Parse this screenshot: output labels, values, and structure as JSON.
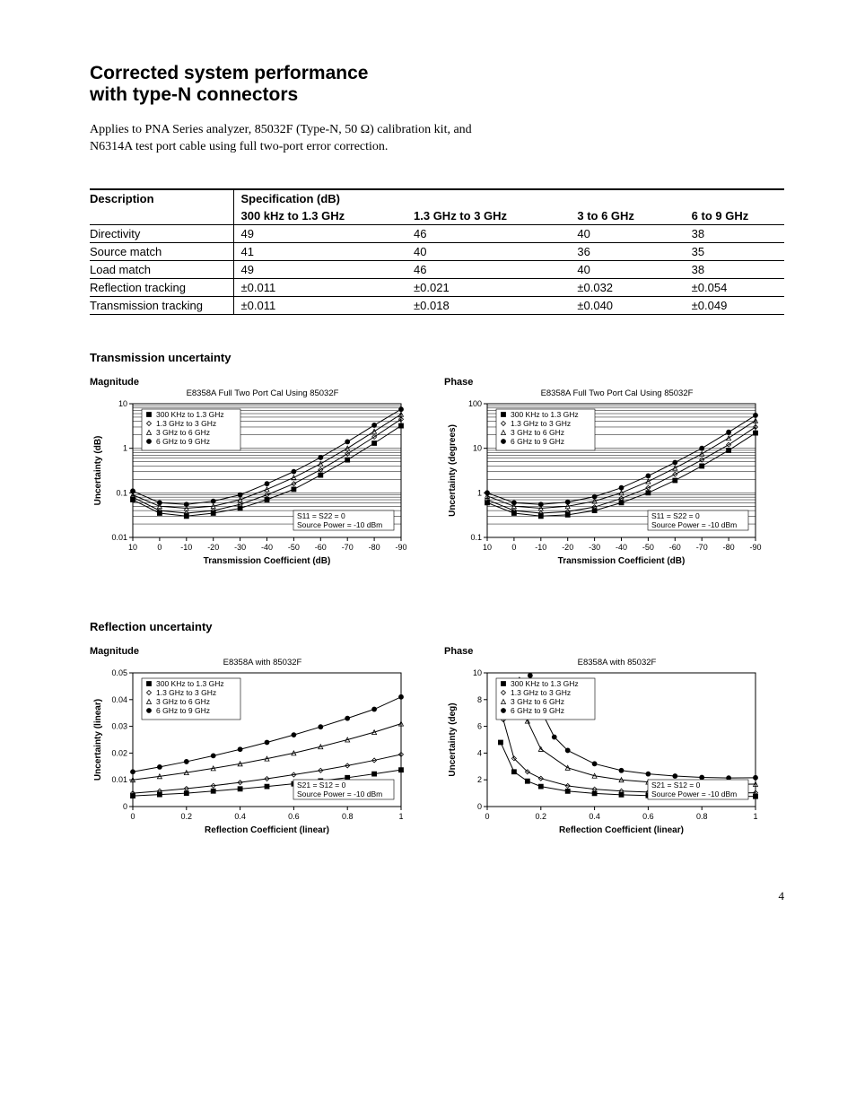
{
  "page_number": "4",
  "heading_line1": "Corrected system performance",
  "heading_line2": "with type-N connectors",
  "intro": "Applies to PNA Series analyzer, 85032F (Type-N, 50 Ω) calibration kit, and N6314A test port cable using full two-port error correction.",
  "table": {
    "headers": {
      "desc": "Description",
      "spec": "Specification (dB)"
    },
    "cols": [
      "300 kHz to 1.3 GHz",
      "1.3 GHz to 3 GHz",
      "3 to 6 GHz",
      "6 to 9 GHz"
    ],
    "rows": [
      {
        "label": "Directivity",
        "v": [
          "49",
          "46",
          "40",
          "38"
        ]
      },
      {
        "label": "Source match",
        "v": [
          "41",
          "40",
          "36",
          "35"
        ]
      },
      {
        "label": "Load match",
        "v": [
          "49",
          "46",
          "40",
          "38"
        ]
      },
      {
        "label": "Reflection tracking",
        "v": [
          "±0.011",
          "±0.021",
          "±0.032",
          "±0.054"
        ]
      },
      {
        "label": "Transmission tracking",
        "v": [
          "±0.011",
          "±0.018",
          "±0.040",
          "±0.049"
        ]
      }
    ]
  },
  "legend_items": [
    "300 KHz to 1.3 GHz",
    "1.3 GHz to 3 GHz",
    "3 GHz to 6 GHz",
    "6 GHz to 9 GHz"
  ],
  "legend_markers": [
    "square",
    "diamond",
    "triangle",
    "circle"
  ],
  "sections": {
    "trans": {
      "title": "Transmission uncertainty",
      "annot": [
        "S11 = S22 = 0",
        "Source Power = -10 dBm"
      ],
      "xlabel": "Transmission Coefficient (dB)",
      "xticks": [
        10,
        0,
        -10,
        -20,
        -30,
        -40,
        -50,
        -60,
        -70,
        -80,
        -90
      ],
      "mag": {
        "sub": "Magnitude",
        "title": "E8358A Full Two Port Cal Using 85032F",
        "ylabel": "Uncertainty (dB)",
        "yscale": "log",
        "ylim": [
          0.01,
          10
        ],
        "yticks": [
          0.01,
          0.1,
          1,
          10
        ],
        "grid": true,
        "series": [
          {
            "x": [
              10,
              0,
              -10,
              -20,
              -30,
              -40,
              -50,
              -60,
              -70,
              -80,
              -90
            ],
            "y": [
              0.07,
              0.035,
              0.03,
              0.035,
              0.045,
              0.07,
              0.12,
              0.25,
              0.55,
              1.3,
              3.2
            ]
          },
          {
            "x": [
              10,
              0,
              -10,
              -20,
              -30,
              -40,
              -50,
              -60,
              -70,
              -80,
              -90
            ],
            "y": [
              0.08,
              0.04,
              0.035,
              0.04,
              0.055,
              0.09,
              0.16,
              0.33,
              0.75,
              1.8,
              4.5
            ]
          },
          {
            "x": [
              10,
              0,
              -10,
              -20,
              -30,
              -40,
              -50,
              -60,
              -70,
              -80,
              -90
            ],
            "y": [
              0.09,
              0.05,
              0.045,
              0.05,
              0.07,
              0.12,
              0.22,
              0.45,
              1.0,
              2.4,
              5.8
            ]
          },
          {
            "x": [
              10,
              0,
              -10,
              -20,
              -30,
              -40,
              -50,
              -60,
              -70,
              -80,
              -90
            ],
            "y": [
              0.11,
              0.06,
              0.055,
              0.065,
              0.09,
              0.16,
              0.3,
              0.62,
              1.4,
              3.3,
              7.5
            ]
          }
        ]
      },
      "phase": {
        "sub": "Phase",
        "title": "E8358A Full Two Port Cal Using 85032F",
        "ylabel": "Uncertainty (degrees)",
        "yscale": "log",
        "ylim": [
          0.1,
          100
        ],
        "yticks": [
          0.1,
          1,
          10,
          100
        ],
        "grid": true,
        "series": [
          {
            "x": [
              10,
              0,
              -10,
              -20,
              -30,
              -40,
              -50,
              -60,
              -70,
              -80,
              -90
            ],
            "y": [
              0.6,
              0.35,
              0.3,
              0.32,
              0.4,
              0.6,
              1.0,
              1.9,
              4.0,
              9,
              22
            ]
          },
          {
            "x": [
              10,
              0,
              -10,
              -20,
              -30,
              -40,
              -50,
              -60,
              -70,
              -80,
              -90
            ],
            "y": [
              0.7,
              0.4,
              0.35,
              0.38,
              0.48,
              0.75,
              1.3,
              2.6,
              5.5,
              12,
              30
            ]
          },
          {
            "x": [
              10,
              0,
              -10,
              -20,
              -30,
              -40,
              -50,
              -60,
              -70,
              -80,
              -90
            ],
            "y": [
              0.85,
              0.5,
              0.45,
              0.5,
              0.65,
              1.0,
              1.8,
              3.6,
              7.5,
              17,
              42
            ]
          },
          {
            "x": [
              10,
              0,
              -10,
              -20,
              -30,
              -40,
              -50,
              -60,
              -70,
              -80,
              -90
            ],
            "y": [
              1.0,
              0.6,
              0.55,
              0.62,
              0.82,
              1.3,
              2.4,
              4.8,
              10,
              23,
              55
            ]
          }
        ]
      }
    },
    "refl": {
      "title": "Reflection uncertainty",
      "annot": [
        "S21 = S12 = 0",
        "Source Power = -10 dBm"
      ],
      "xlabel": "Reflection Coefficient (linear)",
      "xticks": [
        0,
        0.2,
        0.4,
        0.6,
        0.8,
        1
      ],
      "mag": {
        "sub": "Magnitude",
        "title": "E8358A with 85032F",
        "ylabel": "Uncertainty (linear)",
        "yscale": "linear",
        "ylim": [
          0,
          0.05
        ],
        "yticks": [
          0,
          0.01,
          0.02,
          0.03,
          0.04,
          0.05
        ],
        "grid": false,
        "series": [
          {
            "x": [
              0,
              0.1,
              0.2,
              0.3,
              0.4,
              0.5,
              0.6,
              0.7,
              0.8,
              0.9,
              1.0
            ],
            "y": [
              0.004,
              0.0045,
              0.005,
              0.0058,
              0.0066,
              0.0075,
              0.0085,
              0.0096,
              0.0108,
              0.0122,
              0.0137
            ]
          },
          {
            "x": [
              0,
              0.1,
              0.2,
              0.3,
              0.4,
              0.5,
              0.6,
              0.7,
              0.8,
              0.9,
              1.0
            ],
            "y": [
              0.005,
              0.0058,
              0.0067,
              0.0078,
              0.009,
              0.0104,
              0.0119,
              0.0135,
              0.0153,
              0.0173,
              0.0195
            ]
          },
          {
            "x": [
              0,
              0.1,
              0.2,
              0.3,
              0.4,
              0.5,
              0.6,
              0.7,
              0.8,
              0.9,
              1.0
            ],
            "y": [
              0.01,
              0.0113,
              0.0127,
              0.0143,
              0.016,
              0.0179,
              0.02,
              0.0224,
              0.025,
              0.0278,
              0.031
            ]
          },
          {
            "x": [
              0,
              0.1,
              0.2,
              0.3,
              0.4,
              0.5,
              0.6,
              0.7,
              0.8,
              0.9,
              1.0
            ],
            "y": [
              0.013,
              0.0148,
              0.0168,
              0.019,
              0.0214,
              0.024,
              0.0268,
              0.0298,
              0.033,
              0.0364,
              0.041
            ]
          }
        ]
      },
      "phase": {
        "sub": "Phase",
        "title": "E8358A with 85032F",
        "ylabel": "Uncertainty (deg)",
        "yscale": "linear",
        "ylim": [
          0,
          10
        ],
        "yticks": [
          0,
          2,
          4,
          6,
          8,
          10
        ],
        "grid": false,
        "series": [
          {
            "x": [
              0.05,
              0.1,
              0.15,
              0.2,
              0.3,
              0.4,
              0.5,
              0.6,
              0.7,
              0.8,
              0.9,
              1.0
            ],
            "y": [
              4.8,
              2.6,
              1.9,
              1.5,
              1.15,
              0.98,
              0.88,
              0.82,
              0.78,
              0.76,
              0.75,
              0.76
            ]
          },
          {
            "x": [
              0.06,
              0.1,
              0.15,
              0.2,
              0.3,
              0.4,
              0.5,
              0.6,
              0.7,
              0.8,
              0.9,
              1.0
            ],
            "y": [
              6.5,
              3.6,
              2.6,
              2.1,
              1.55,
              1.3,
              1.16,
              1.08,
              1.03,
              1.01,
              1.01,
              1.03
            ]
          },
          {
            "x": [
              0.12,
              0.15,
              0.2,
              0.3,
              0.4,
              0.5,
              0.6,
              0.7,
              0.8,
              0.9,
              1.0
            ],
            "y": [
              9.5,
              6.4,
              4.3,
              2.9,
              2.3,
              2.0,
              1.84,
              1.74,
              1.68,
              1.66,
              1.68
            ]
          },
          {
            "x": [
              0.16,
              0.2,
              0.25,
              0.3,
              0.4,
              0.5,
              0.6,
              0.7,
              0.8,
              0.9,
              1.0
            ],
            "y": [
              9.8,
              7.2,
              5.2,
              4.2,
              3.2,
              2.7,
              2.44,
              2.28,
              2.18,
              2.14,
              2.16
            ]
          }
        ]
      }
    }
  }
}
